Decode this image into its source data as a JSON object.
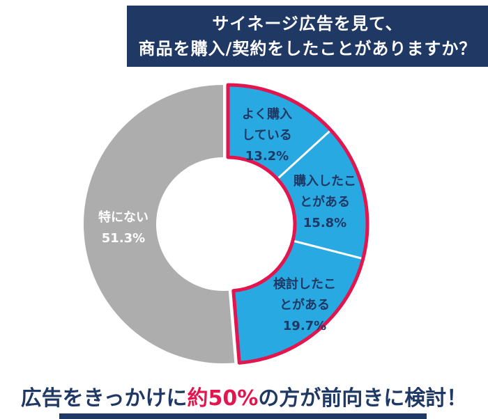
{
  "header": {
    "title_line1": "サイネージ広告を見て、",
    "title_line2": "商品を購入/契約をしたことがありますか？",
    "bg_color": "#1F3864",
    "text_color": "#FFFFFF"
  },
  "chart_data": {
    "type": "pie",
    "donut": true,
    "title": "サイネージ広告を見て、商品を購入/契約をしたことがありますか？",
    "start_angle_deg": 0,
    "direction": "clockwise",
    "unit": "%",
    "segments": [
      {
        "label": "よく購入している",
        "value_pct": 13.2,
        "pct_text": "13.2%",
        "color": "#29A9E1",
        "label_lines": [
          "よく購入",
          "している"
        ]
      },
      {
        "label": "購入したことがある",
        "value_pct": 15.8,
        "pct_text": "15.8%",
        "color": "#29A9E1",
        "label_lines": [
          "購入したこ",
          "とがある"
        ]
      },
      {
        "label": "検討したことがある",
        "value_pct": 19.7,
        "pct_text": "19.7%",
        "color": "#29A9E1",
        "label_lines": [
          "検討したこ",
          "とがある"
        ]
      },
      {
        "label": "特にない",
        "value_pct": 51.3,
        "pct_text": "51.3%",
        "color": "#ADADAD",
        "label_lines": [
          "特にない"
        ]
      }
    ],
    "highlight_outline": {
      "segment_indexes": [
        0,
        1,
        2
      ],
      "color": "#E3154E"
    },
    "divider_color": "#FFFFFF",
    "label_color_on_blue": "#1F3864",
    "label_color_on_gray": "#FFFFFF",
    "legend": "none"
  },
  "footer": {
    "text_before": "広告をきっかけに",
    "highlight": "約50%",
    "text_after": "の方が前向きに検討！",
    "highlight_color": "#E3154E",
    "text_color": "#1F3864"
  },
  "bottom_bar_color": "#1F3864"
}
